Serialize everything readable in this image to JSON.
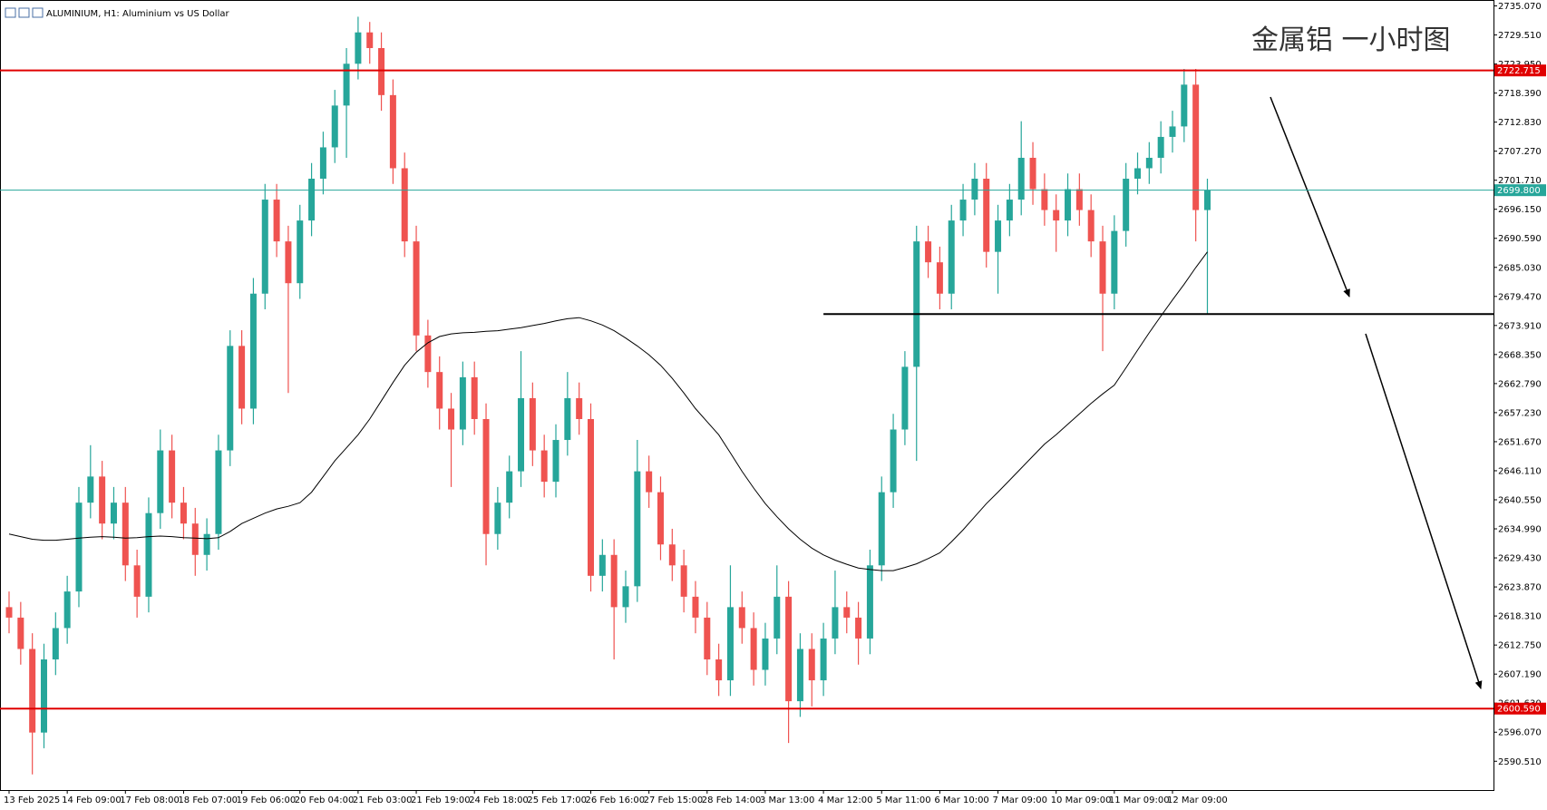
{
  "chart_data": {
    "type": "candlestick",
    "title": "ALUMINIUM, H1:  Aluminium vs US Dollar",
    "annotation": "金属铝 一小时图",
    "up_color": "#26a69a",
    "down_color": "#ef5350",
    "ma_color": "#000000",
    "ylim": [
      2585.0,
      2736.2
    ],
    "yticks": [
      {
        "value": 2735.07,
        "label": "2735.070"
      },
      {
        "value": 2729.51,
        "label": "2729.510"
      },
      {
        "value": 2723.95,
        "label": "2723.950"
      },
      {
        "value": 2718.39,
        "label": "2718.390"
      },
      {
        "value": 2712.83,
        "label": "2712.830"
      },
      {
        "value": 2707.27,
        "label": "2707.270"
      },
      {
        "value": 2701.71,
        "label": "2701.710"
      },
      {
        "value": 2696.15,
        "label": "2696.150"
      },
      {
        "value": 2690.59,
        "label": "2690.590"
      },
      {
        "value": 2685.03,
        "label": "2685.030"
      },
      {
        "value": 2679.47,
        "label": "2679.470"
      },
      {
        "value": 2673.91,
        "label": "2673.910"
      },
      {
        "value": 2668.35,
        "label": "2668.350"
      },
      {
        "value": 2662.79,
        "label": "2662.790"
      },
      {
        "value": 2657.23,
        "label": "2657.230"
      },
      {
        "value": 2651.67,
        "label": "2651.670"
      },
      {
        "value": 2646.11,
        "label": "2646.110"
      },
      {
        "value": 2640.55,
        "label": "2640.550"
      },
      {
        "value": 2634.99,
        "label": "2634.990"
      },
      {
        "value": 2629.43,
        "label": "2629.430"
      },
      {
        "value": 2623.87,
        "label": "2623.870"
      },
      {
        "value": 2618.31,
        "label": "2618.310"
      },
      {
        "value": 2612.75,
        "label": "2612.750"
      },
      {
        "value": 2607.19,
        "label": "2607.190"
      },
      {
        "value": 2601.63,
        "label": "2601.630"
      },
      {
        "value": 2596.07,
        "label": "2596.070"
      },
      {
        "value": 2590.51,
        "label": "2590.510"
      }
    ],
    "categories": [
      "13 Feb 2025",
      null,
      null,
      null,
      null,
      "14 Feb 09:00",
      null,
      null,
      null,
      null,
      "17 Feb 08:00",
      null,
      null,
      null,
      null,
      "18 Feb 07:00",
      null,
      null,
      null,
      null,
      "19 Feb 06:00",
      null,
      null,
      null,
      null,
      "20 Feb 04:00",
      null,
      null,
      null,
      null,
      "21 Feb 03:00",
      null,
      null,
      null,
      null,
      "21 Feb 19:00",
      null,
      null,
      null,
      null,
      "24 Feb 18:00",
      null,
      null,
      null,
      null,
      "25 Feb 17:00",
      null,
      null,
      null,
      null,
      "26 Feb 16:00",
      null,
      null,
      null,
      null,
      "27 Feb 15:00",
      null,
      null,
      null,
      null,
      "28 Feb 14:00",
      null,
      null,
      null,
      null,
      "3 Mar 13:00",
      null,
      null,
      null,
      null,
      "4 Mar 12:00",
      null,
      null,
      null,
      null,
      "5 Mar 11:00",
      null,
      null,
      null,
      null,
      "6 Mar 10:00",
      null,
      null,
      null,
      null,
      "7 Mar 09:00",
      null,
      null,
      null,
      null,
      "10 Mar 09:00",
      null,
      null,
      null,
      null,
      "11 Mar 09:00",
      null,
      null,
      null,
      null,
      "12 Mar 09:00",
      null,
      null,
      null
    ],
    "open": [
      2620,
      2618,
      2612,
      2596,
      2610,
      2616,
      2623,
      2640,
      2645,
      2636,
      2640,
      2628,
      2622,
      2638,
      2650,
      2640,
      2636,
      2630,
      2634,
      2650,
      2670,
      2658,
      2680,
      2698,
      2690,
      2682,
      2694,
      2702,
      2708,
      2716,
      2724,
      2730,
      2727,
      2718,
      2704,
      2690,
      2672,
      2665,
      2658,
      2654,
      2664,
      2656,
      2634,
      2640,
      2646,
      2660,
      2650,
      2644,
      2652,
      2660,
      2656,
      2626,
      2630,
      2620,
      2624,
      2646,
      2642,
      2632,
      2628,
      2622,
      2618,
      2610,
      2606,
      2620,
      2616,
      2608,
      2614,
      2622,
      2602,
      2612,
      2606,
      2614,
      2620,
      2618,
      2614,
      2628,
      2642,
      2654,
      2666,
      2690,
      2686,
      2680,
      2694,
      2698,
      2702,
      2688,
      2694,
      2698,
      2706,
      2700,
      2696,
      2694,
      2700,
      2696,
      2690,
      2680,
      2692,
      2702,
      2704,
      2706,
      2710,
      2712,
      2720,
      2696
    ],
    "high": [
      2623,
      2621,
      2615,
      2613,
      2619,
      2626,
      2643,
      2651,
      2648,
      2643,
      2643,
      2631,
      2641,
      2654,
      2653,
      2643,
      2639,
      2637,
      2653,
      2673,
      2673,
      2683,
      2701,
      2701,
      2693,
      2697,
      2705,
      2711,
      2719,
      2727,
      2733,
      2732,
      2730,
      2721,
      2707,
      2693,
      2675,
      2668,
      2661,
      2667,
      2667,
      2659,
      2643,
      2649,
      2669,
      2663,
      2653,
      2655,
      2665,
      2663,
      2659,
      2633,
      2633,
      2627,
      2652,
      2649,
      2645,
      2635,
      2631,
      2625,
      2621,
      2613,
      2628,
      2623,
      2619,
      2617,
      2628,
      2625,
      2615,
      2615,
      2617,
      2627,
      2623,
      2621,
      2631,
      2645,
      2657,
      2669,
      2693,
      2693,
      2689,
      2697,
      2701,
      2705,
      2705,
      2697,
      2701,
      2713,
      2709,
      2703,
      2699,
      2703,
      2703,
      2699,
      2693,
      2695,
      2705,
      2707,
      2709,
      2713,
      2715,
      2723,
      2723,
      2702
    ],
    "low": [
      2615,
      2609,
      2588,
      2593,
      2607,
      2613,
      2620,
      2637,
      2633,
      2633,
      2625,
      2618,
      2619,
      2635,
      2637,
      2633,
      2626,
      2627,
      2631,
      2647,
      2655,
      2655,
      2677,
      2687,
      2661,
      2679,
      2691,
      2699,
      2705,
      2706,
      2721,
      2724,
      2715,
      2701,
      2687,
      2669,
      2662,
      2654,
      2643,
      2651,
      2653,
      2628,
      2631,
      2637,
      2643,
      2647,
      2641,
      2641,
      2649,
      2653,
      2623,
      2623,
      2610,
      2617,
      2621,
      2639,
      2629,
      2625,
      2619,
      2615,
      2607,
      2603,
      2603,
      2613,
      2605,
      2605,
      2611,
      2594,
      2599,
      2601,
      2603,
      2611,
      2615,
      2609,
      2611,
      2625,
      2639,
      2651,
      2648,
      2683,
      2677,
      2677,
      2691,
      2695,
      2685,
      2680,
      2691,
      2695,
      2697,
      2693,
      2688,
      2691,
      2693,
      2687,
      2669,
      2677,
      2689,
      2699,
      2701,
      2703,
      2707,
      2709,
      2690,
      2676
    ],
    "close": [
      2618,
      2612,
      2596,
      2610,
      2616,
      2623,
      2640,
      2645,
      2636,
      2640,
      2628,
      2622,
      2638,
      2650,
      2640,
      2636,
      2630,
      2634,
      2650,
      2670,
      2658,
      2680,
      2698,
      2690,
      2682,
      2694,
      2702,
      2708,
      2716,
      2724,
      2730,
      2727,
      2718,
      2704,
      2690,
      2672,
      2665,
      2658,
      2654,
      2664,
      2656,
      2634,
      2640,
      2646,
      2660,
      2650,
      2644,
      2652,
      2660,
      2656,
      2626,
      2630,
      2620,
      2624,
      2646,
      2642,
      2632,
      2628,
      2622,
      2618,
      2610,
      2606,
      2620,
      2616,
      2608,
      2614,
      2622,
      2602,
      2612,
      2606,
      2614,
      2620,
      2618,
      2614,
      2628,
      2642,
      2654,
      2666,
      2690,
      2686,
      2680,
      2694,
      2698,
      2702,
      2688,
      2694,
      2698,
      2706,
      2700,
      2696,
      2694,
      2700,
      2696,
      2690,
      2680,
      2692,
      2702,
      2704,
      2706,
      2710,
      2712,
      2720,
      2696,
      2699.8
    ],
    "ma": [
      2634,
      2633.5,
      2633,
      2632.8,
      2632.8,
      2633,
      2633.2,
      2633.4,
      2633.5,
      2633.4,
      2633.2,
      2633.3,
      2633.5,
      2633.6,
      2633.5,
      2633.3,
      2633.2,
      2633.1,
      2633.3,
      2634.5,
      2636,
      2637,
      2638,
      2638.8,
      2639.3,
      2640,
      2642,
      2645,
      2648,
      2650.5,
      2653,
      2656,
      2659.5,
      2663,
      2666.3,
      2668.8,
      2670.6,
      2671.8,
      2672.3,
      2672.5,
      2672.6,
      2672.8,
      2672.9,
      2673.2,
      2673.5,
      2673.9,
      2674.3,
      2674.8,
      2675.2,
      2675.4,
      2674.8,
      2674,
      2672.9,
      2671.5,
      2670,
      2668.3,
      2666.3,
      2663.8,
      2661,
      2658,
      2655.5,
      2653,
      2649.5,
      2646,
      2642.8,
      2639.8,
      2637.3,
      2635,
      2633,
      2631.3,
      2630,
      2629,
      2628.2,
      2627.5,
      2627.2,
      2627,
      2627,
      2627.6,
      2628.3,
      2629.3,
      2630.4,
      2632.5,
      2634.8,
      2637.3,
      2639.8,
      2642,
      2644.3,
      2646.6,
      2648.9,
      2651.2,
      2653,
      2655,
      2657,
      2659,
      2660.8,
      2662.5,
      2665.8,
      2669.2,
      2672.5,
      2675.7,
      2678.8,
      2681.8,
      2685,
      2688
    ],
    "hlines": [
      {
        "value": 2722.715,
        "color": "#e00000"
      },
      {
        "value": 2699.8,
        "label": "2699.800",
        "color": "#26a69a"
      },
      {
        "value": 2600.59,
        "label": "2600.590",
        "color": "#e00000"
      }
    ],
    "support": {
      "value": 2676.1,
      "start": 70
    }
  }
}
